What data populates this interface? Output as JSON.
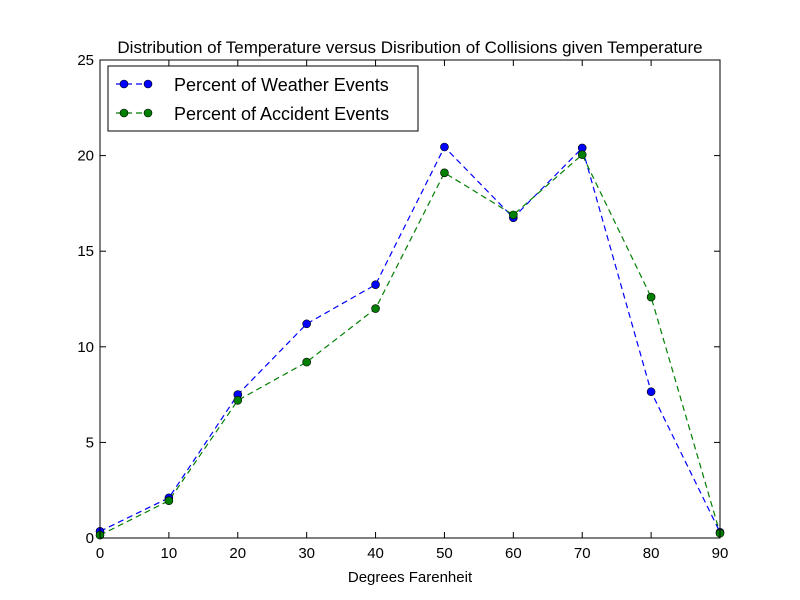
{
  "chart_data": {
    "type": "line",
    "title": "Distribution of Temperature versus Disribution of Collisions given Temperature",
    "xlabel": "Degrees Farenheit",
    "ylabel": "",
    "xlim": [
      0,
      90
    ],
    "ylim": [
      0,
      25
    ],
    "xticks": [
      0,
      10,
      20,
      30,
      40,
      50,
      60,
      70,
      80,
      90
    ],
    "yticks": [
      0,
      5,
      10,
      15,
      20,
      25
    ],
    "grid": false,
    "legend_position": "top-left",
    "x": [
      0,
      10,
      20,
      30,
      40,
      50,
      60,
      70,
      80,
      90
    ],
    "series": [
      {
        "name": "Percent of Weather Events",
        "color": "#0000ff",
        "line_style": "dashed",
        "marker": "circle",
        "values": [
          0.35,
          2.1,
          7.5,
          11.2,
          13.25,
          20.45,
          16.75,
          20.4,
          7.65,
          0.3
        ]
      },
      {
        "name": "Percent of Accident Events",
        "color": "#007f00",
        "line_style": "dashed",
        "marker": "circle",
        "values": [
          0.15,
          1.95,
          7.2,
          9.2,
          12.0,
          19.1,
          16.9,
          20.05,
          12.6,
          0.25
        ]
      }
    ]
  }
}
